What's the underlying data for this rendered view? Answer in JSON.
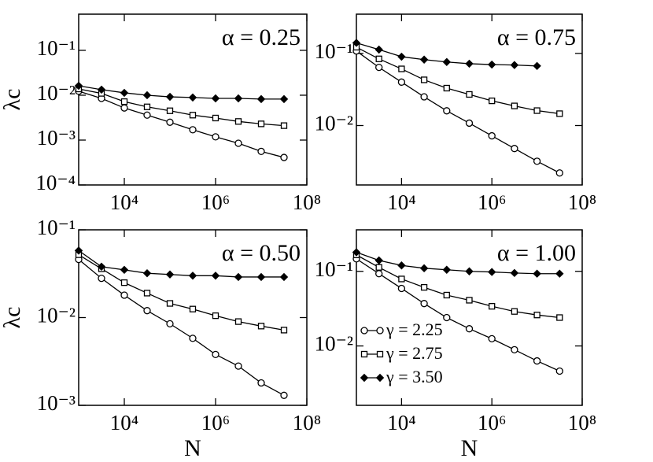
{
  "chart_data": [
    {
      "type": "line",
      "xscale": "log",
      "yscale": "log",
      "annotation": "α = 0.25",
      "ylabel": "λc",
      "x": [
        1000,
        3162,
        10000,
        31623,
        100000,
        316228,
        1000000,
        3162278,
        10000000,
        31622777
      ],
      "xlim": [
        1000,
        100000000
      ],
      "xticks": [
        {
          "value": 10000,
          "label": "10⁴"
        },
        {
          "value": 1000000,
          "label": "10⁶"
        },
        {
          "value": 100000000,
          "label": "10⁸"
        }
      ],
      "ylim": [
        0.0001,
        0.64
      ],
      "yticks": [
        {
          "value": 0.0001,
          "label": "10⁻⁴"
        },
        {
          "value": 0.001,
          "label": "10⁻³"
        },
        {
          "value": 0.01,
          "label": "10⁻²"
        },
        {
          "value": 0.1,
          "label": "10⁻¹"
        }
      ],
      "series": [
        {
          "marker": "circle",
          "color": "#000000",
          "values": [
            0.0123,
            0.0085,
            0.0052,
            0.0036,
            0.0025,
            0.0017,
            0.00118,
            0.00085,
            0.00056,
            0.00041
          ]
        },
        {
          "marker": "square",
          "color": "#000000",
          "values": [
            0.0138,
            0.011,
            0.0072,
            0.0055,
            0.0045,
            0.0036,
            0.0031,
            0.0026,
            0.0023,
            0.0021
          ]
        },
        {
          "marker": "diamond",
          "color": "#000000",
          "values": [
            0.0162,
            0.0133,
            0.0113,
            0.01,
            0.0092,
            0.0089,
            0.0085,
            0.0085,
            0.0082,
            0.0082
          ]
        }
      ]
    },
    {
      "type": "line",
      "xscale": "log",
      "yscale": "log",
      "annotation": "α = 0.75",
      "x": [
        1000,
        3162,
        10000,
        31623,
        100000,
        316228,
        1000000,
        3162278,
        10000000,
        31622777
      ],
      "xlim": [
        1000,
        100000000
      ],
      "xticks": [
        {
          "value": 10000,
          "label": "10⁴"
        },
        {
          "value": 1000000,
          "label": "10⁶"
        },
        {
          "value": 100000000,
          "label": "10⁸"
        }
      ],
      "ylim": [
        0.0015,
        0.35
      ],
      "yticks": [
        {
          "value": 0.01,
          "label": "10⁻²"
        },
        {
          "value": 0.1,
          "label": "10⁻¹"
        }
      ],
      "series": [
        {
          "marker": "circle",
          "color": "#000000",
          "values": [
            0.108,
            0.064,
            0.04,
            0.025,
            0.016,
            0.0108,
            0.0072,
            0.0048,
            0.0032,
            0.0022
          ]
        },
        {
          "marker": "square",
          "color": "#000000",
          "values": [
            0.122,
            0.084,
            0.061,
            0.043,
            0.033,
            0.027,
            0.022,
            0.0187,
            0.0161,
            0.0146
          ]
        },
        {
          "marker": "diamond",
          "color": "#000000",
          "values": [
            0.14,
            0.113,
            0.09,
            0.082,
            0.076,
            0.072,
            0.07,
            0.069,
            0.067,
            null
          ]
        }
      ]
    },
    {
      "type": "line",
      "xscale": "log",
      "yscale": "log",
      "annotation": "α = 0.50",
      "ylabel": "λc",
      "xlabel": "N",
      "x": [
        1000,
        3162,
        10000,
        31623,
        100000,
        316228,
        1000000,
        3162278,
        10000000,
        31622777
      ],
      "xlim": [
        1000,
        100000000
      ],
      "xticks": [
        {
          "value": 10000,
          "label": "10⁴"
        },
        {
          "value": 1000000,
          "label": "10⁶"
        },
        {
          "value": 100000000,
          "label": "10⁸"
        }
      ],
      "ylim": [
        0.001,
        0.1
      ],
      "yticks": [
        {
          "value": 0.001,
          "label": "10⁻³"
        },
        {
          "value": 0.01,
          "label": "10⁻²"
        },
        {
          "value": 0.1,
          "label": "10⁻¹"
        }
      ],
      "series": [
        {
          "marker": "circle",
          "color": "#000000",
          "values": [
            0.046,
            0.028,
            0.018,
            0.012,
            0.0085,
            0.0058,
            0.0038,
            0.0028,
            0.0018,
            0.0013
          ]
        },
        {
          "marker": "square",
          "color": "#000000",
          "values": [
            0.052,
            0.036,
            0.025,
            0.019,
            0.0145,
            0.0125,
            0.0105,
            0.009,
            0.008,
            0.0072
          ]
        },
        {
          "marker": "diamond",
          "color": "#000000",
          "values": [
            0.058,
            0.038,
            0.035,
            0.032,
            0.031,
            0.03,
            0.03,
            0.029,
            0.029,
            0.029
          ]
        }
      ]
    },
    {
      "type": "line",
      "xscale": "log",
      "yscale": "log",
      "annotation": "α = 1.00",
      "xlabel": "N",
      "legend": "lower left",
      "x": [
        1000,
        3162,
        10000,
        31623,
        100000,
        316228,
        1000000,
        3162278,
        10000000,
        31622777
      ],
      "xlim": [
        1000,
        100000000
      ],
      "xticks": [
        {
          "value": 10000,
          "label": "10⁴"
        },
        {
          "value": 1000000,
          "label": "10⁶"
        },
        {
          "value": 100000000,
          "label": "10⁸"
        }
      ],
      "ylim": [
        0.0016,
        0.36
      ],
      "yticks": [
        {
          "value": 0.01,
          "label": "10⁻²"
        },
        {
          "value": 0.1,
          "label": "10⁻¹"
        }
      ],
      "series": [
        {
          "name": "γ = 2.25",
          "marker": "circle",
          "color": "#000000",
          "values": [
            0.147,
            0.093,
            0.059,
            0.037,
            0.024,
            0.017,
            0.0125,
            0.0089,
            0.0063,
            0.0046
          ]
        },
        {
          "name": "γ = 2.75",
          "marker": "square",
          "color": "#000000",
          "values": [
            0.166,
            0.113,
            0.079,
            0.061,
            0.048,
            0.041,
            0.034,
            0.029,
            0.026,
            0.024
          ]
        },
        {
          "name": "γ = 3.50",
          "marker": "diamond",
          "color": "#000000",
          "values": [
            0.18,
            0.14,
            0.12,
            0.11,
            0.105,
            0.1,
            0.098,
            0.095,
            0.093,
            0.093
          ]
        }
      ]
    }
  ]
}
